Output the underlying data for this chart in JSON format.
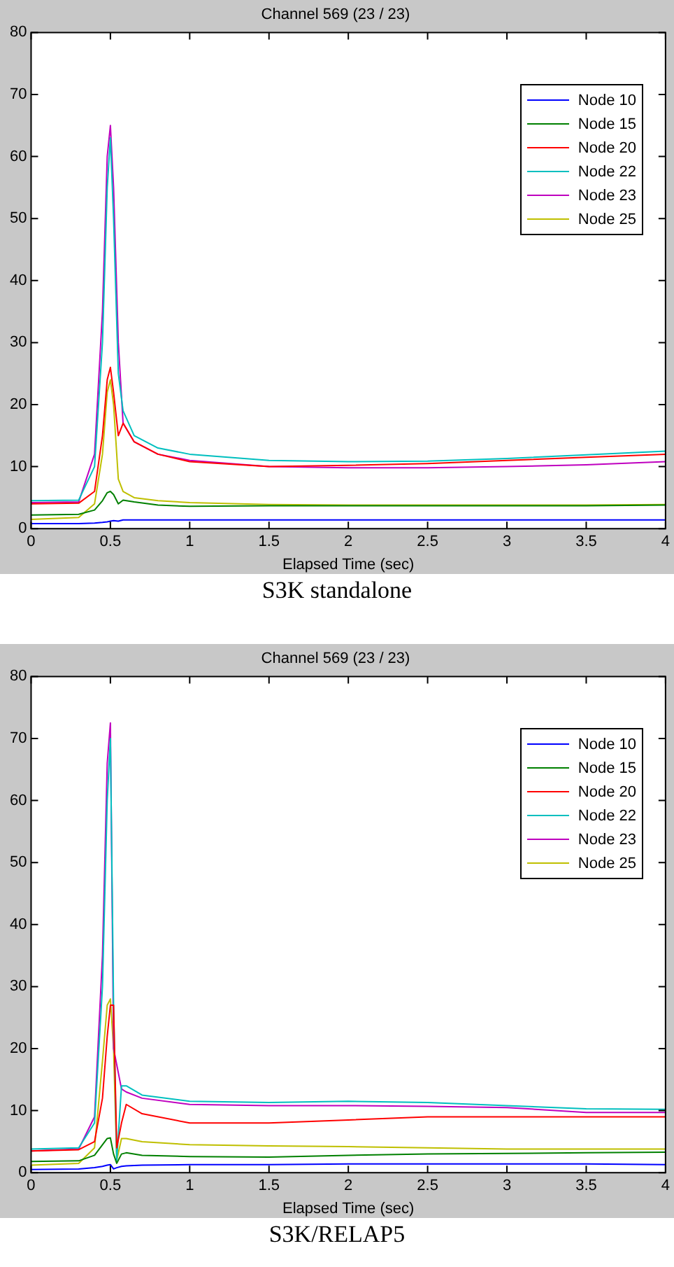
{
  "chart_data": [
    {
      "type": "line",
      "title": "Channel 569 (23 / 23)",
      "xlabel": "Elapsed Time (sec)",
      "annotations": [
        "S3K standalone"
      ],
      "legend": "top right",
      "grid": false,
      "marker": "none",
      "xlim": [
        0,
        4
      ],
      "xticks": [
        0,
        0.5,
        1,
        1.5,
        2,
        2.5,
        3,
        3.5,
        4
      ],
      "ylim": [
        0,
        80
      ],
      "yticks": [
        0,
        10,
        20,
        30,
        40,
        50,
        60,
        70,
        80
      ],
      "x": [
        0,
        0.3,
        0.4,
        0.45,
        0.48,
        0.5,
        0.52,
        0.55,
        0.58,
        0.65,
        0.8,
        1,
        1.5,
        2,
        2.5,
        3,
        3.5,
        4
      ],
      "series": [
        {
          "name": "Node 10",
          "color": "#0000ff",
          "values": [
            0.8,
            0.8,
            0.9,
            1.0,
            1.1,
            1.2,
            1.3,
            1.2,
            1.4,
            1.4,
            1.4,
            1.4,
            1.4,
            1.4,
            1.4,
            1.4,
            1.4,
            1.4
          ]
        },
        {
          "name": "Node 15",
          "color": "#008000",
          "values": [
            2.2,
            2.3,
            3,
            4.5,
            5.8,
            6,
            5.5,
            4,
            4.6,
            4.3,
            3.8,
            3.6,
            3.7,
            3.7,
            3.7,
            3.7,
            3.7,
            3.8
          ]
        },
        {
          "name": "Node 20",
          "color": "#ff0000",
          "values": [
            4,
            4.1,
            6,
            15,
            24,
            26,
            22,
            15,
            17,
            14,
            12,
            10.8,
            10,
            10.2,
            10.5,
            11,
            11.5,
            12
          ]
        },
        {
          "name": "Node 22",
          "color": "#00bfbf",
          "values": [
            4.5,
            4.6,
            10,
            30,
            55,
            63,
            50,
            25,
            19,
            15,
            13,
            12,
            11,
            10.8,
            10.9,
            11.3,
            11.9,
            12.5
          ]
        },
        {
          "name": "Node 23",
          "color": "#bf00bf",
          "values": [
            4.2,
            4.3,
            12,
            35,
            60,
            65,
            55,
            30,
            17,
            14,
            12,
            11,
            10,
            9.8,
            9.8,
            10,
            10.3,
            10.8
          ]
        },
        {
          "name": "Node 25",
          "color": "#bfbf00",
          "values": [
            1.5,
            1.8,
            4,
            12,
            22,
            24,
            20,
            8,
            6,
            5,
            4.5,
            4.2,
            3.9,
            3.8,
            3.8,
            3.8,
            3.8,
            3.9
          ]
        }
      ]
    },
    {
      "type": "line",
      "title": "Channel 569 (23 / 23)",
      "xlabel": "Elapsed Time (sec)",
      "annotations": [
        "S3K/RELAP5"
      ],
      "legend": "top right",
      "grid": false,
      "marker": "none",
      "xlim": [
        0,
        4
      ],
      "xticks": [
        0,
        0.5,
        1,
        1.5,
        2,
        2.5,
        3,
        3.5,
        4
      ],
      "ylim": [
        0,
        80
      ],
      "yticks": [
        0,
        10,
        20,
        30,
        40,
        50,
        60,
        70,
        80
      ],
      "x": [
        0,
        0.3,
        0.4,
        0.45,
        0.48,
        0.5,
        0.52,
        0.54,
        0.57,
        0.6,
        0.7,
        1,
        1.5,
        2,
        2.5,
        3,
        3.5,
        4
      ],
      "series": [
        {
          "name": "Node 10",
          "color": "#0000ff",
          "values": [
            0.5,
            0.6,
            0.8,
            1.0,
            1.2,
            1.3,
            0.6,
            0.8,
            1.0,
            1.1,
            1.2,
            1.3,
            1.3,
            1.4,
            1.4,
            1.4,
            1.4,
            1.3
          ]
        },
        {
          "name": "Node 15",
          "color": "#008000",
          "values": [
            1.8,
            1.9,
            2.8,
            4.5,
            5.5,
            5.6,
            3,
            1.5,
            3,
            3.2,
            2.8,
            2.6,
            2.5,
            2.8,
            3,
            3.1,
            3.2,
            3.3
          ]
        },
        {
          "name": "Node 20",
          "color": "#ff0000",
          "values": [
            3.5,
            3.7,
            5,
            12,
            22,
            27,
            27,
            4,
            8,
            11,
            9.5,
            8,
            8,
            8.5,
            9,
            9,
            9,
            9
          ]
        },
        {
          "name": "Node 22",
          "color": "#00bfbf",
          "values": [
            3.8,
            4,
            8,
            30,
            60,
            70,
            27,
            2,
            14,
            14,
            12.5,
            11.5,
            11.3,
            11.5,
            11.3,
            10.8,
            10.3,
            10.2
          ]
        },
        {
          "name": "Node 23",
          "color": "#bf00bf",
          "values": [
            3.5,
            3.8,
            9,
            35,
            66,
            72.5,
            20,
            null,
            13.5,
            13,
            12,
            11,
            10.8,
            10.8,
            10.7,
            10.5,
            9.7,
            9.7
          ]
        },
        {
          "name": "Node 25",
          "color": "#bfbf00",
          "values": [
            1.2,
            1.5,
            4,
            18,
            27,
            28,
            20,
            2,
            5.5,
            5.5,
            5,
            4.5,
            4.3,
            4.2,
            4,
            3.8,
            3.8,
            3.8
          ]
        }
      ]
    }
  ]
}
